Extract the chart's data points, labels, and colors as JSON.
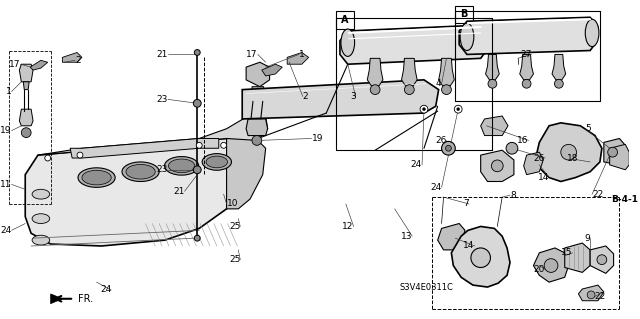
{
  "bg_color": "#ffffff",
  "line_color": "#000000",
  "diagram_code": "S3V4E0311C",
  "figsize": [
    6.4,
    3.19
  ],
  "dpi": 100,
  "labels": [
    [
      17,
      62,
      "17"
    ],
    [
      73,
      62,
      "2"
    ],
    [
      8,
      98,
      "1"
    ],
    [
      8,
      135,
      "19"
    ],
    [
      8,
      185,
      "11"
    ],
    [
      8,
      228,
      "24"
    ],
    [
      112,
      293,
      "24"
    ],
    [
      168,
      56,
      "21"
    ],
    [
      168,
      100,
      "23"
    ],
    [
      168,
      168,
      "23"
    ],
    [
      180,
      192,
      "21"
    ],
    [
      225,
      202,
      "10"
    ],
    [
      243,
      228,
      "25"
    ],
    [
      243,
      265,
      "25"
    ],
    [
      262,
      56,
      "17"
    ],
    [
      300,
      56,
      "1"
    ],
    [
      304,
      98,
      "2"
    ],
    [
      318,
      142,
      "19"
    ],
    [
      362,
      98,
      "3"
    ],
    [
      450,
      88,
      "4"
    ],
    [
      456,
      142,
      "26"
    ],
    [
      430,
      170,
      "24"
    ],
    [
      450,
      192,
      "24"
    ],
    [
      360,
      228,
      "12"
    ],
    [
      420,
      240,
      "13"
    ],
    [
      478,
      205,
      "7"
    ],
    [
      518,
      198,
      "8"
    ],
    [
      540,
      142,
      "16"
    ],
    [
      560,
      180,
      "14"
    ],
    [
      556,
      162,
      "26"
    ],
    [
      578,
      162,
      "18"
    ],
    [
      596,
      132,
      "5"
    ],
    [
      604,
      198,
      "22"
    ],
    [
      542,
      56,
      "27"
    ],
    [
      484,
      248,
      "14"
    ],
    [
      556,
      270,
      "20"
    ],
    [
      584,
      258,
      "15"
    ],
    [
      602,
      240,
      "9"
    ],
    [
      606,
      300,
      "22"
    ],
    [
      625,
      198,
      "B-4-1"
    ]
  ],
  "section_labels": [
    [
      380,
      10,
      "A"
    ],
    [
      504,
      10,
      "B"
    ]
  ]
}
